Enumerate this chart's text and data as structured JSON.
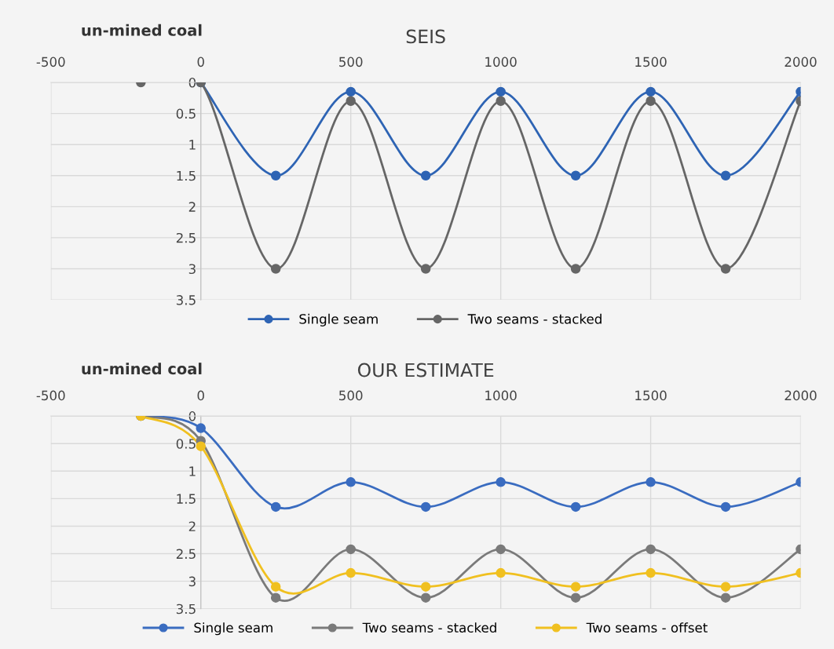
{
  "chart_data": [
    {
      "type": "line",
      "title": "SEIS",
      "annotations": [
        "un-mined coal"
      ],
      "x": [
        -200,
        0,
        250,
        500,
        750,
        1000,
        1250,
        1500,
        1750,
        2000
      ],
      "series": [
        {
          "name": "Single seam",
          "color": "#2e64b4",
          "values": [
            null,
            0,
            1.5,
            0.15,
            1.5,
            0.15,
            1.5,
            0.15,
            1.5,
            0.15
          ]
        },
        {
          "name": "Two seams - stacked",
          "color": "#666666",
          "values": [
            0,
            0,
            3,
            0.3,
            3,
            0.3,
            3,
            0.3,
            3,
            0.3
          ]
        }
      ],
      "xlim": [
        -500,
        2000
      ],
      "xticks": [
        -500,
        0,
        500,
        1000,
        1500,
        2000
      ],
      "ylim": [
        3.5,
        0
      ],
      "yticks": [
        0,
        0.5,
        1,
        1.5,
        2,
        2.5,
        3,
        3.5
      ],
      "grid": true,
      "legend": "bottom",
      "marker": "circle",
      "line_style": "solid"
    },
    {
      "type": "line",
      "title": "OUR ESTIMATE",
      "annotations": [
        "un-mined coal"
      ],
      "x": [
        -200,
        0,
        250,
        500,
        750,
        1000,
        1250,
        1500,
        1750,
        2000
      ],
      "series": [
        {
          "name": "Single seam",
          "color": "#3a6cc0",
          "values": [
            0,
            0.22,
            1.65,
            1.2,
            1.65,
            1.2,
            1.65,
            1.2,
            1.65,
            1.2
          ]
        },
        {
          "name": "Two seams - stacked",
          "color": "#7a7a7a",
          "values": [
            0,
            0.45,
            3.3,
            2.42,
            3.3,
            2.42,
            3.3,
            2.42,
            3.3,
            2.42
          ]
        },
        {
          "name": "Two seams - offset",
          "color": "#f0c020",
          "values": [
            0,
            0.55,
            3.1,
            2.85,
            3.1,
            2.85,
            3.1,
            2.85,
            3.1,
            2.85
          ]
        }
      ],
      "xlim": [
        -500,
        2000
      ],
      "xticks": [
        -500,
        0,
        500,
        1000,
        1500,
        2000
      ],
      "ylim": [
        3.5,
        0
      ],
      "yticks": [
        0,
        0.5,
        1,
        1.5,
        2,
        2.5,
        3,
        3.5
      ],
      "grid": true,
      "legend": "bottom",
      "marker": "circle",
      "line_style": "solid"
    }
  ]
}
